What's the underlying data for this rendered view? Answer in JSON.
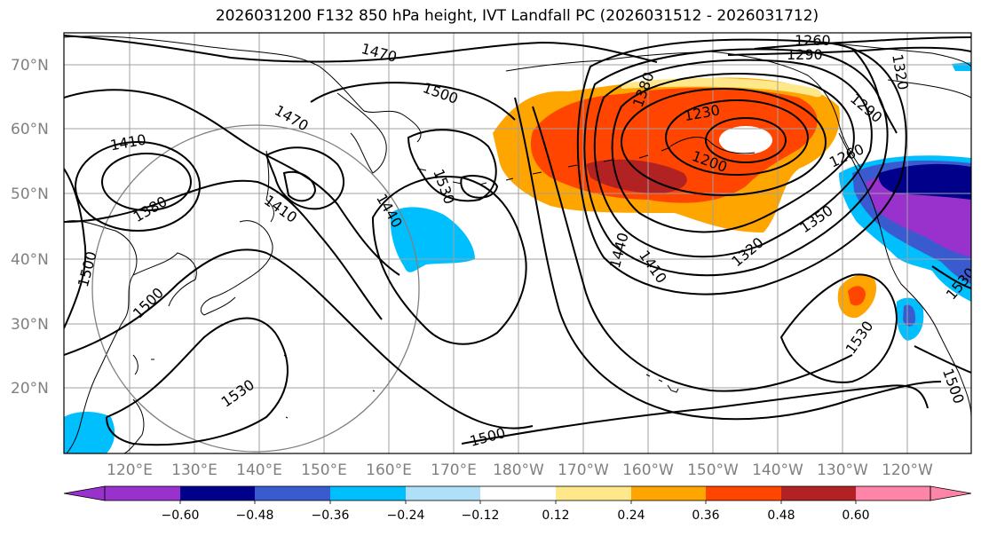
{
  "title": "2026031200 F132 850 hPa height, IVT Landfall PC (2026031512 - 2026031712)",
  "map": {
    "lon_labels": [
      "120°E",
      "130°E",
      "140°E",
      "150°E",
      "160°E",
      "170°E",
      "180°W",
      "170°W",
      "160°W",
      "150°W",
      "140°W",
      "130°W",
      "120°W"
    ],
    "lat_labels": [
      "70°N",
      "60°N",
      "50°N",
      "40°N",
      "30°N",
      "20°N"
    ],
    "contour_labels": [
      "1260",
      "1290",
      "1320",
      "1470",
      "1500",
      "1470",
      "1410",
      "1380",
      "1410",
      "1440",
      "1530",
      "1500",
      "1500",
      "1230",
      "1200",
      "1260",
      "1290",
      "1350",
      "1320",
      "1440",
      "1410",
      "1530",
      "1530",
      "1500",
      "1500",
      "1530",
      "1380"
    ],
    "colors": {
      "land_outline": "#000000",
      "grid": "#a0a0a0",
      "contour": "#000000",
      "circle": "#808080"
    }
  },
  "colorbar": {
    "tick_labels": [
      "−0.60",
      "−0.48",
      "−0.36",
      "−0.24",
      "−0.12",
      "0.12",
      "0.24",
      "0.36",
      "0.48",
      "0.60"
    ],
    "colors": [
      "#9932cc",
      "#00008b",
      "#3a5bcf",
      "#00bfff",
      "#b0e0f8",
      "#ffffff",
      "#ffe88a",
      "#ffa500",
      "#ff4500",
      "#b22222",
      "#ff85a8"
    ]
  }
}
